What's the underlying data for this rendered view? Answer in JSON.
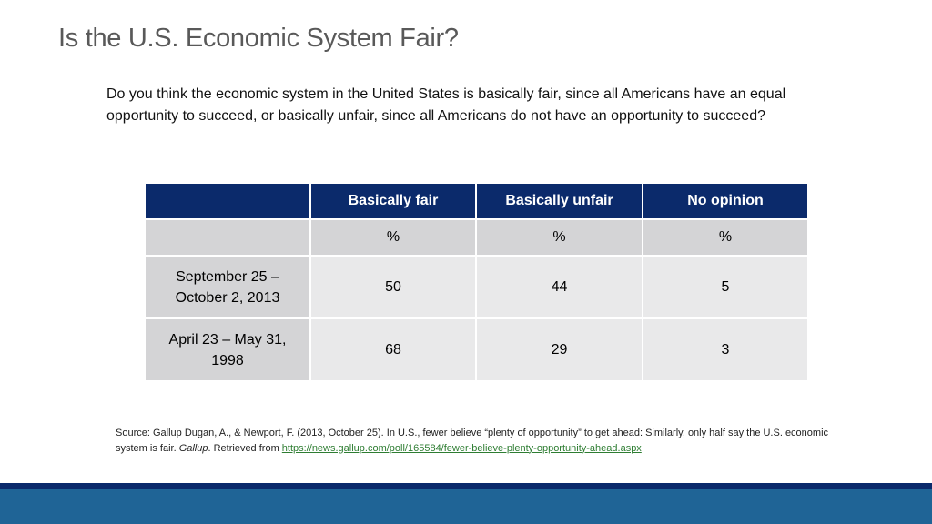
{
  "title": "Is the U.S. Economic System Fair?",
  "question": "Do you think the economic system in the United States is basically fair, since all Americans have an equal opportunity to succeed, or basically unfair, since all Americans do not have an opportunity to succeed?",
  "table": {
    "columns": [
      "",
      "Basically fair",
      "Basically unfair",
      "No opinion"
    ],
    "units": [
      "",
      "%",
      "%",
      "%"
    ],
    "rows": [
      {
        "label": "September 25 – October 2, 2013",
        "values": [
          "50",
          "44",
          "5"
        ]
      },
      {
        "label": "April 23 – May 31, 1998",
        "values": [
          "68",
          "29",
          "3"
        ]
      }
    ]
  },
  "source": {
    "text_before": "Source: Gallup Dugan, A., & Newport, F. (2013, October 25). In U.S., fewer believe “plenty of opportunity” to get ahead: Similarly, only half say the U.S. economic system is fair. ",
    "journal": "Gallup",
    "text_middle": ". Retrieved from ",
    "link": "https://news.gallup.com/poll/165584/fewer-believe-plenty-opportunity-ahead.aspx"
  },
  "colors": {
    "header_bg": "#0b2a6b",
    "row_bg": "#d4d4d6",
    "cell_bg": "#e9e9ea",
    "footer_band": "#1f6496",
    "link": "#2e7d32"
  }
}
